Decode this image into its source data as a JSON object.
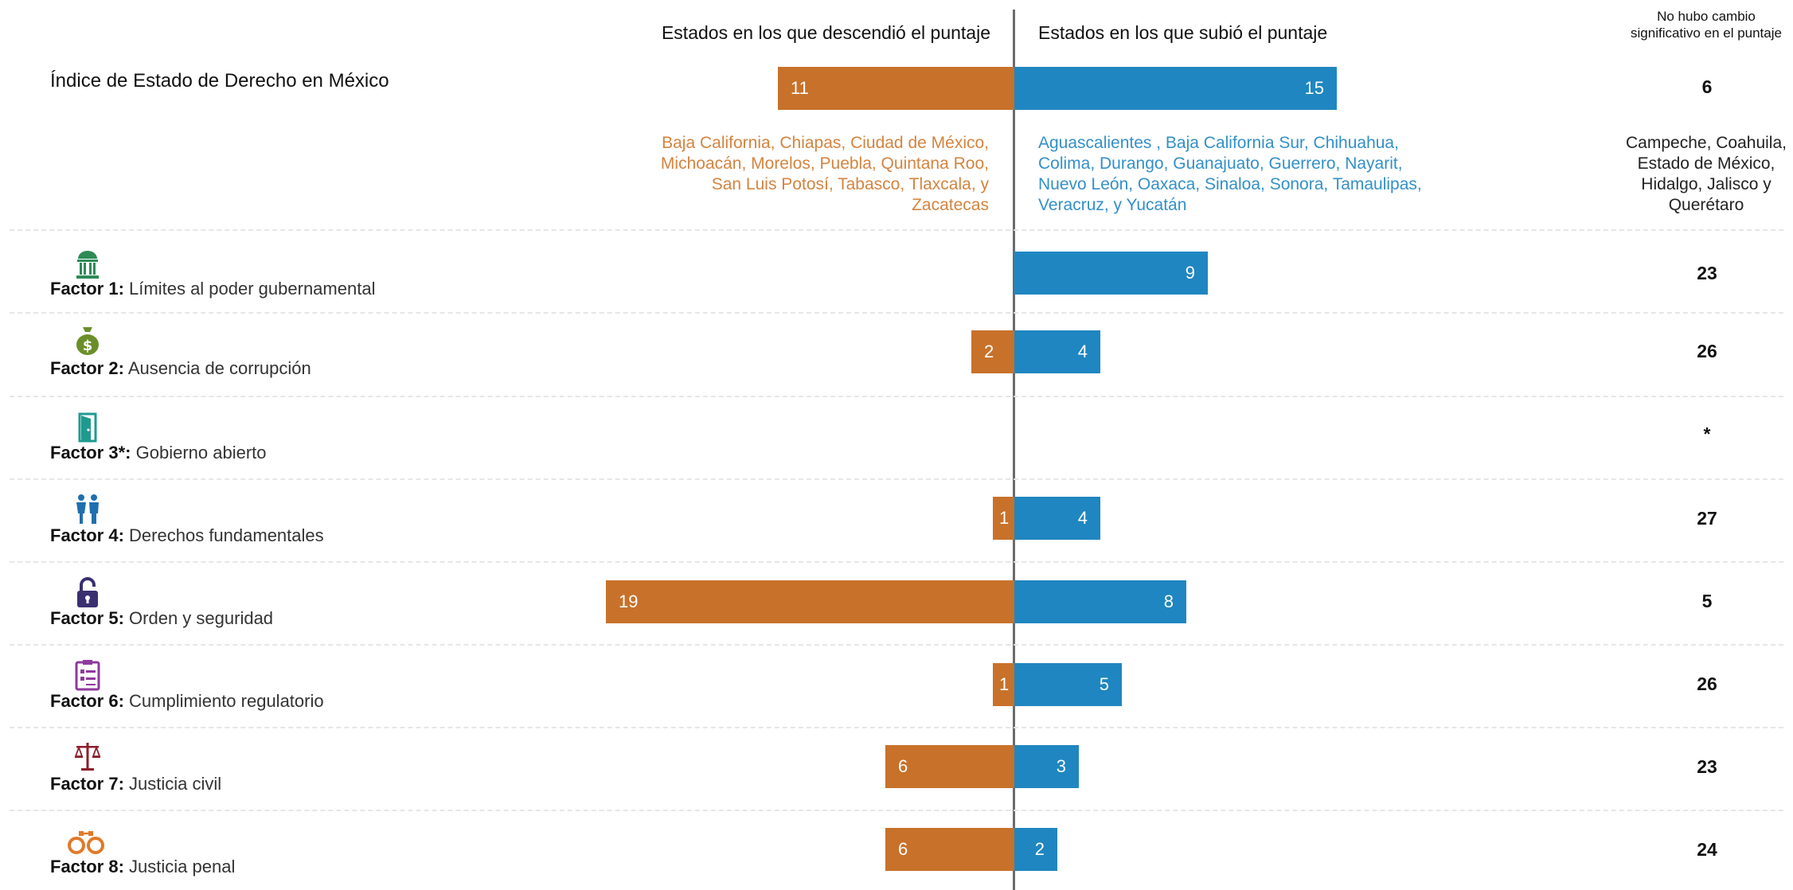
{
  "headers": {
    "down": "Estados en los que descendió el puntaje",
    "up": "Estados en los que subió el puntaje",
    "no_change": "No hubo cambio significativo en el puntaje"
  },
  "colors": {
    "down": "#c8712a",
    "up": "#1f86c1",
    "down_text": "#d4843f",
    "up_text": "#3390c8"
  },
  "index_row": {
    "label": "Índice de Estado de Derecho en México",
    "down": 11,
    "up": 15,
    "no_change": "6",
    "states_down": "Baja California, Chiapas, Ciudad de México, Michoacán,  Morelos, Puebla, Quintana Roo,  San Luis Potosí, Tabasco, Tlaxcala, y Zacatecas",
    "states_up": "Aguascalientes , Baja California Sur, Chihuahua, Colima, Durango, Guanajuato, Guerrero, Nayarit, Nuevo León, Oaxaca, Sinaloa, Sonora, Tamaulipas, Veracruz, y Yucatán",
    "states_no_change": "Campeche, Coahuila, Estado de México, Hidalgo, Jalisco y  Querétaro"
  },
  "factors": [
    {
      "key": "Factor 1:",
      "label": "Límites al poder gubernamental",
      "icon": "government-building-icon",
      "down": null,
      "up": 9,
      "no_change": "23"
    },
    {
      "key": "Factor 2:",
      "label": "Ausencia de corrupción",
      "icon": "money-bag-icon",
      "down": 2,
      "up": 4,
      "no_change": "26"
    },
    {
      "key": "Factor 3*:",
      "label": "Gobierno abierto",
      "icon": "open-door-icon",
      "down": null,
      "up": null,
      "no_change": "*"
    },
    {
      "key": "Factor 4:",
      "label": "Derechos fundamentales",
      "icon": "people-icon",
      "down": 1,
      "up": 4,
      "no_change": "27"
    },
    {
      "key": "Factor 5:",
      "label": "Orden y seguridad",
      "icon": "padlock-icon",
      "down": 19,
      "up": 8,
      "no_change": "5"
    },
    {
      "key": "Factor 6:",
      "label": "Cumplimiento regulatorio",
      "icon": "clipboard-icon",
      "down": 1,
      "up": 5,
      "no_change": "26"
    },
    {
      "key": "Factor 7:",
      "label": "Justicia civil",
      "icon": "scales-icon",
      "down": 6,
      "up": 3,
      "no_change": "23"
    },
    {
      "key": "Factor 8:",
      "label": "Justicia penal",
      "icon": "handcuffs-icon",
      "down": 6,
      "up": 2,
      "no_change": "24"
    }
  ],
  "chart_data": {
    "type": "bar",
    "orientation": "horizontal-diverging",
    "categories": [
      "Índice de Estado de Derecho en México",
      "Factor 1: Límites al poder gubernamental",
      "Factor 2: Ausencia de corrupción",
      "Factor 3*: Gobierno abierto",
      "Factor 4: Derechos fundamentales",
      "Factor 5: Orden y seguridad",
      "Factor 6: Cumplimiento regulatorio",
      "Factor 7: Justicia civil",
      "Factor 8: Justicia penal"
    ],
    "series": [
      {
        "name": "Estados en los que descendió el puntaje",
        "values": [
          11,
          null,
          2,
          null,
          1,
          19,
          1,
          6,
          6
        ]
      },
      {
        "name": "Estados en los que subió el puntaje",
        "values": [
          15,
          9,
          4,
          null,
          4,
          8,
          5,
          3,
          2
        ]
      },
      {
        "name": "No hubo cambio significativo en el puntaje",
        "values": [
          6,
          23,
          26,
          null,
          27,
          5,
          26,
          23,
          24
        ]
      }
    ]
  }
}
